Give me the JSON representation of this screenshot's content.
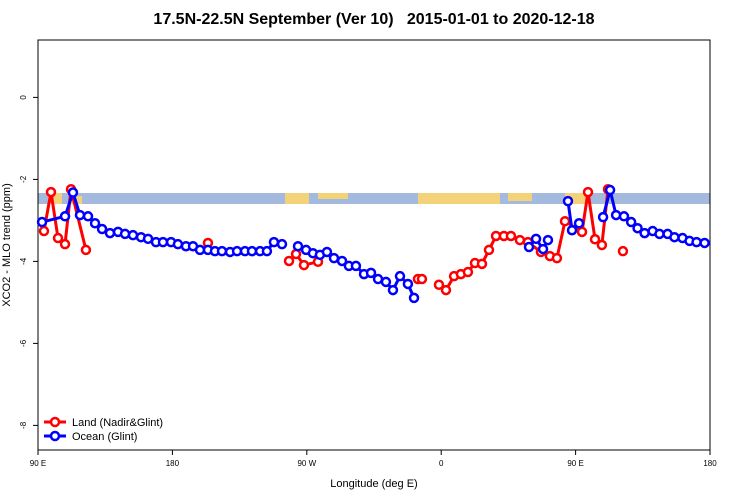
{
  "chart_data": {
    "type": "line",
    "title": "17.5N-22.5N September (Ver 10)   2015-01-01 to 2020-12-18",
    "xlabel": "Longitude (deg E)",
    "ylabel": "XCO2 - MLO trend (ppm)",
    "xlim": [
      90,
      540
    ],
    "ylim": [
      -8.6,
      1.4
    ],
    "xticks": [
      {
        "value": 90,
        "label": "90 E"
      },
      {
        "value": 180,
        "label": "180"
      },
      {
        "value": 270,
        "label": "90 W"
      },
      {
        "value": 360,
        "label": "0"
      },
      {
        "value": 450,
        "label": "90 E"
      },
      {
        "value": 540,
        "label": "180"
      }
    ],
    "yticks": [
      0,
      -2,
      -4,
      -6,
      -8
    ],
    "legend": "bottomleft",
    "series": [
      {
        "name": "Land (Nadir&Glint)",
        "color": "#ff0000",
        "x": [
          94.0,
          98.7,
          103.4,
          108.1,
          112.1,
          122.1,
          null,
          203.8,
          null,
          258.1,
          262.8,
          268.1,
          277.5,
          null,
          344.4,
          347.1,
          null,
          358.5,
          363.2,
          368.6,
          373.2,
          377.9,
          382.6,
          387.3,
          392.0,
          396.7,
          402.0,
          406.7,
          412.7,
          418.1,
          426.8,
          432.8,
          437.5,
          442.9,
          454.3,
          458.3,
          463.0,
          467.6,
          471.7,
          null,
          481.7
        ],
        "values": [
          -3.26,
          -2.31,
          -3.43,
          -3.58,
          -2.24,
          -3.72,
          null,
          -3.55,
          null,
          -3.99,
          -3.82,
          -4.09,
          -4.01,
          null,
          -4.43,
          -4.43,
          null,
          -4.57,
          -4.7,
          -4.36,
          -4.31,
          -4.26,
          -4.04,
          -4.06,
          -3.72,
          -3.38,
          -3.38,
          -3.38,
          -3.48,
          -3.53,
          -3.77,
          -3.87,
          -3.92,
          -3.02,
          -3.28,
          -2.31,
          -3.46,
          -3.6,
          -2.24,
          null,
          -3.75
        ]
      },
      {
        "name": "Ocean (Glint)",
        "color": "#0000ff",
        "x": [
          92.7,
          108.1,
          113.4,
          118.1,
          123.5,
          128.2,
          132.9,
          138.2,
          143.6,
          148.3,
          153.6,
          159.0,
          163.7,
          169.0,
          173.7,
          179.1,
          183.7,
          189.1,
          193.8,
          198.5,
          203.8,
          208.5,
          213.2,
          218.6,
          223.3,
          228.6,
          233.3,
          238.7,
          243.3,
          248.0,
          253.4,
          null,
          264.1,
          269.5,
          274.1,
          278.8,
          283.5,
          288.2,
          293.6,
          298.2,
          302.9,
          308.3,
          313.0,
          317.7,
          323.0,
          327.7,
          332.4,
          337.7,
          341.8,
          null,
          418.8,
          423.5,
          428.2,
          431.5,
          null,
          444.9,
          447.6,
          452.3,
          null,
          468.4,
          473.1,
          477.1,
          482.4,
          487.2,
          491.5,
          496.2,
          501.6,
          506.2,
          511.6,
          516.2,
          521.6,
          526.3,
          531.0,
          536.4
        ],
        "values": [
          -3.04,
          -2.9,
          -2.32,
          -2.87,
          -2.9,
          -3.07,
          -3.21,
          -3.31,
          -3.28,
          -3.33,
          -3.36,
          -3.41,
          -3.45,
          -3.53,
          -3.53,
          -3.53,
          -3.58,
          -3.63,
          -3.63,
          -3.72,
          -3.72,
          -3.75,
          -3.75,
          -3.77,
          -3.75,
          -3.75,
          -3.75,
          -3.75,
          -3.75,
          -3.53,
          -3.58,
          null,
          -3.63,
          -3.72,
          -3.8,
          -3.84,
          -3.77,
          -3.92,
          -3.99,
          -4.11,
          -4.11,
          -4.31,
          -4.28,
          -4.43,
          -4.5,
          -4.7,
          -4.36,
          -4.55,
          -4.89,
          null,
          -3.65,
          -3.45,
          -3.7,
          -3.48,
          null,
          -2.53,
          -3.24,
          -3.07,
          null,
          -2.92,
          -2.26,
          -2.87,
          -2.9,
          -3.04,
          -3.19,
          -3.31,
          -3.26,
          -3.33,
          -3.33,
          -3.41,
          -3.43,
          -3.5,
          -3.53,
          -3.55
        ]
      }
    ]
  }
}
